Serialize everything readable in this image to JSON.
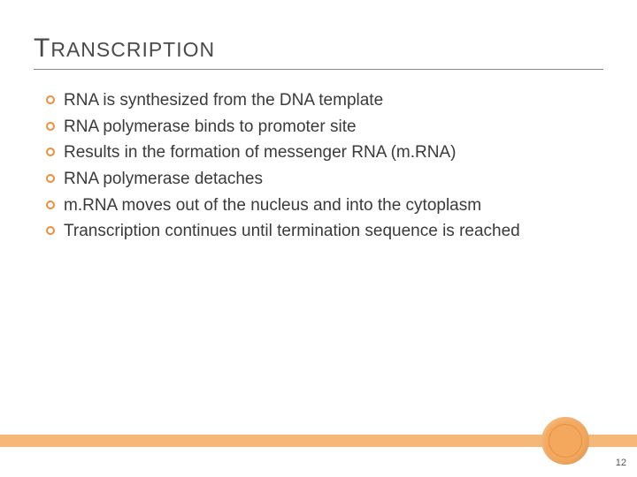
{
  "slide": {
    "title_first_char": "T",
    "title_rest": "RANSCRIPTION",
    "bullets": [
      "RNA is synthesized from the DNA template",
      "RNA polymerase binds to promoter site",
      "Results in the formation of messenger RNA (m.RNA)",
      "RNA polymerase detaches",
      "m.RNA moves out of the nucleus and into the cytoplasm",
      "Transcription continues until termination sequence is reached"
    ],
    "page_number": "12"
  },
  "style": {
    "bullet_border_color": "#e98f3f",
    "bar_color": "#f5b879",
    "circle_color": "#f3a85d",
    "title_color": "#4a4a4a",
    "text_color": "#3a3a3a",
    "background_color": "#ffffff",
    "title_fontsize_large": 30,
    "title_fontsize_small": 23,
    "body_fontsize": 19,
    "pagenum_fontsize": 11
  }
}
